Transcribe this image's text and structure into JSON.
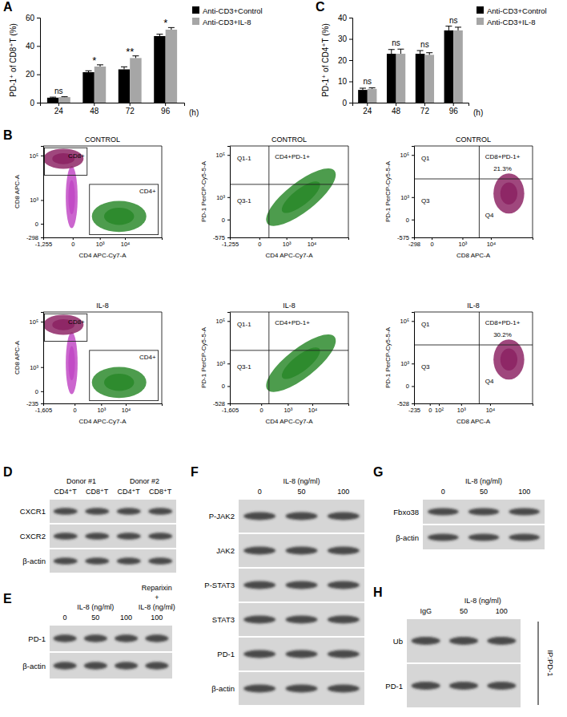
{
  "panel_labels": [
    "A",
    "B",
    "C",
    "D",
    "E",
    "F",
    "G",
    "H"
  ],
  "chart_data": [
    {
      "type": "bar",
      "y_label": "PD-1⁺ of CD8⁺T (%)",
      "x_label": "(h)",
      "categories": [
        "24",
        "48",
        "72",
        "96"
      ],
      "series": [
        {
          "name": "Anti-CD3+Control",
          "color": "#000000",
          "values": [
            3.5,
            21.5,
            23.5,
            47.0
          ],
          "errors": [
            0.4,
            1.0,
            1.8,
            1.3
          ]
        },
        {
          "name": "Anti-CD3+IL-8",
          "color": "#a6a6a6",
          "values": [
            3.9,
            25.5,
            31.5,
            51.5
          ],
          "errors": [
            0.3,
            1.2,
            1.5,
            1.5
          ]
        }
      ],
      "ylim": [
        0,
        60
      ],
      "yticks": [
        0,
        20,
        40,
        60
      ],
      "legend": "upper right",
      "annotations": [
        "ns",
        "*",
        "**",
        "*"
      ]
    },
    {
      "type": "bar",
      "y_label": "PD-1⁺ of CD4⁺T (%)",
      "x_label": "(h)",
      "categories": [
        "24",
        "48",
        "72",
        "96"
      ],
      "series": [
        {
          "name": "Anti-CD3+Control",
          "color": "#000000",
          "values": [
            6.0,
            23.0,
            23.0,
            34.0
          ],
          "errors": [
            0.8,
            2.0,
            1.5,
            2.0
          ]
        },
        {
          "name": "Anti-CD3+IL-8",
          "color": "#a6a6a6",
          "values": [
            6.5,
            23.0,
            22.5,
            34.0
          ],
          "errors": [
            0.5,
            2.2,
            1.0,
            1.5
          ]
        }
      ],
      "ylim": [
        0,
        40
      ],
      "yticks": [
        0,
        10,
        20,
        30,
        40
      ],
      "legend": "upper right",
      "annotations": [
        "ns",
        "ns",
        "ns",
        "ns"
      ]
    }
  ],
  "flow_plots": [
    {
      "kind": "gating",
      "title": "CONTROL",
      "x_label": "CD4 APC-Cy7-A",
      "y_label": "CD8 APC-A",
      "xlim": [
        -1255,
        262144
      ],
      "ylim": [
        -298,
        262144
      ],
      "xticks": [
        {
          "value": -1255,
          "label": "-1,255"
        },
        0,
        {
          "value": 1000,
          "label": "10³"
        },
        {
          "value": 10000,
          "label": "10⁴"
        }
      ],
      "yticks": [
        -298,
        0,
        {
          "value": 1000,
          "label": "10³"
        },
        {
          "value": 100000,
          "label": "10⁵"
        }
      ],
      "gates": [
        "CD8+",
        "CD4+"
      ]
    },
    {
      "kind": "quadrant",
      "title": "CONTROL",
      "x_label": "CD4 APC-Cy7-A",
      "y_label": "PD-1 PerCP-Cy5-5-A",
      "xlim": [
        -1255,
        262144
      ],
      "ylim": [
        -575,
        262144
      ],
      "xticks": [
        {
          "value": -1255,
          "label": "-1,255"
        },
        0,
        {
          "value": 1000,
          "label": "10³"
        },
        {
          "value": 10000,
          "label": "10⁴"
        }
      ],
      "yticks": [
        -575,
        0,
        {
          "value": 1000,
          "label": "10³"
        },
        {
          "value": 100000,
          "label": "10⁵"
        }
      ],
      "quadrants": [
        "Q1-1",
        "Q3-1"
      ],
      "gate": "CD4+PD-1+"
    },
    {
      "kind": "quadrant",
      "title": "CONTROL",
      "x_label": "CD8 APC-A",
      "y_label": "PD-1 PerCP-Cy5-5-A",
      "xlim": [
        -298,
        262144
      ],
      "ylim": [
        -575,
        262144
      ],
      "xticks": [
        -298,
        0,
        {
          "value": 1000,
          "label": "10³"
        },
        {
          "value": 10000,
          "label": "10⁴"
        }
      ],
      "yticks": [
        -575,
        0,
        {
          "value": 1000,
          "label": "10³"
        },
        {
          "value": 100000,
          "label": "10⁵"
        }
      ],
      "quadrants": [
        "Q1",
        "Q3",
        "Q4"
      ],
      "gate": "CD8+PD-1+",
      "percent": {
        "value": 21.3,
        "label": "21.3%"
      }
    },
    {
      "kind": "gating",
      "title": "IL-8",
      "x_label": "CD4 APC-Cy7-A",
      "y_label": "CD8 APC-A",
      "xlim": [
        -1605,
        262144
      ],
      "ylim": [
        -235,
        262144
      ],
      "xticks": [
        {
          "value": -1605,
          "label": "-1,605"
        },
        0,
        {
          "value": 1000,
          "label": "10³"
        },
        {
          "value": 10000,
          "label": "10⁴"
        }
      ],
      "yticks": [
        -235,
        0,
        {
          "value": 1000,
          "label": "10³"
        },
        {
          "value": 100000,
          "label": "10⁵"
        }
      ],
      "gates": [
        "CD8+",
        "CD4+"
      ]
    },
    {
      "kind": "quadrant",
      "title": "IL-8",
      "x_label": "CD4 APC-Cy7-A",
      "y_label": "PD-1 PerCP-Cy5-5-A",
      "xlim": [
        -1605,
        262144
      ],
      "ylim": [
        -528,
        262144
      ],
      "xticks": [
        {
          "value": -1605,
          "label": "-1,605"
        },
        0,
        {
          "value": 1000,
          "label": "10³"
        },
        {
          "value": 10000,
          "label": "10⁴"
        }
      ],
      "yticks": [
        -528,
        0,
        {
          "value": 1000,
          "label": "10³"
        },
        {
          "value": 100000,
          "label": "10⁵"
        }
      ],
      "quadrants": [
        "Q1-1",
        "Q3-1"
      ],
      "gate": "CD4+PD-1+"
    },
    {
      "kind": "quadrant",
      "title": "IL-8",
      "x_label": "CD8 APC-A",
      "y_label": "PD-1 PerCP-Cy5-5-A",
      "xlim": [
        -235,
        262144
      ],
      "ylim": [
        -528,
        262144
      ],
      "xticks": [
        -235,
        0,
        {
          "value": 100,
          "label": "10²"
        },
        {
          "value": 1000,
          "label": "10³"
        },
        {
          "value": 10000,
          "label": "10⁴"
        }
      ],
      "yticks": [
        -528,
        0,
        {
          "value": 1000,
          "label": "10³"
        },
        {
          "value": 100000,
          "label": "10⁵"
        }
      ],
      "quadrants": [
        "Q1",
        "Q3",
        "Q4"
      ],
      "gate": "CD8+PD-1+",
      "percent": {
        "value": 30.2,
        "label": "30.2%"
      }
    }
  ],
  "blots": [
    {
      "groups": [
        {
          "label": "Donor #1",
          "lanes": [
            "CD4⁺T",
            "CD8⁺T"
          ]
        },
        {
          "label": "Donor #2",
          "lanes": [
            "CD4⁺T",
            "CD8⁺T"
          ]
        }
      ],
      "rows": [
        "CXCR1",
        "CXCR2",
        "β-actin"
      ]
    },
    {
      "groups": [
        {
          "label": "IL-8 (ng/ml)",
          "lanes": [
            "0",
            "50",
            "100"
          ]
        },
        {
          "label": [
            "Reparixin",
            "+",
            "IL-8 (ng/ml)"
          ],
          "lanes": [
            "100"
          ]
        }
      ],
      "rows": [
        "PD-1",
        "β-actin"
      ]
    },
    {
      "groups": [
        {
          "label": "IL-8 (ng/ml)",
          "lanes": [
            "0",
            "50",
            "100"
          ]
        }
      ],
      "rows": [
        "P-JAK2",
        "JAK2",
        "P-STAT3",
        "STAT3",
        "PD-1",
        "β-actin"
      ]
    },
    {
      "groups": [
        {
          "label": "IL-8 (ng/ml)",
          "lanes": [
            "0",
            "50",
            "100"
          ]
        }
      ],
      "rows": [
        "Fbxo38",
        "β-actin"
      ]
    },
    {
      "groups": [
        {
          "lanes": [
            "IgG"
          ]
        },
        {
          "label": "IL-8 (ng/ml)",
          "lanes": [
            "50",
            "100"
          ]
        }
      ],
      "rows": [
        "Ub",
        "PD-1"
      ],
      "side_label": "IP:PD-1"
    }
  ]
}
